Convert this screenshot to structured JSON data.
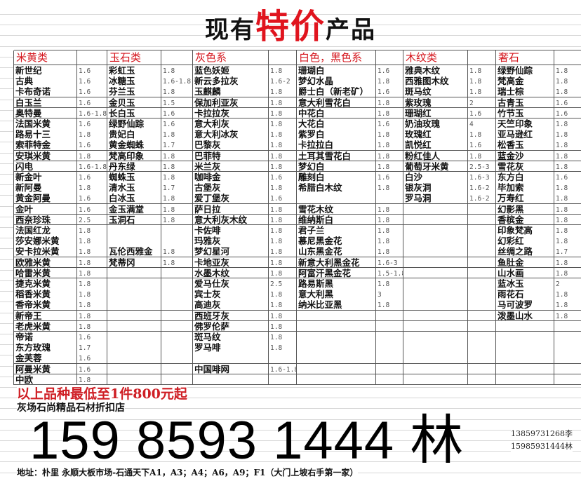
{
  "title": {
    "pre": "现有",
    "highlight": "特价",
    "post": "产品"
  },
  "categories": [
    {
      "header": "米黄类",
      "items": [
        [
          "新世纪",
          "1.6"
        ],
        [
          "古典",
          "1.6"
        ],
        [
          "卡布奇诺",
          "1.6"
        ],
        [
          "白玉兰",
          "1.6"
        ],
        [
          "奥特曼",
          "1.6-1.8"
        ],
        [
          "法国米黄",
          "1.6"
        ],
        [
          "路易十三",
          "1.8"
        ],
        [
          "索菲特金",
          "1.6"
        ],
        [
          "安琪米黄",
          "1.8"
        ],
        [
          "闪电",
          "1.6-1.8"
        ],
        [
          "新金叶",
          "1.6"
        ],
        [
          "新阿曼",
          "1.8"
        ],
        [
          "黄金阿曼",
          "1.6"
        ],
        [
          "金叶",
          "1.6"
        ],
        [
          "西奈珍珠",
          "2.5"
        ],
        [
          "法国红龙",
          "1.8"
        ],
        [
          "莎安娜米黄",
          "1.8"
        ],
        [
          "安卡拉米黄",
          "1.8"
        ],
        [
          "欧雅米黄",
          "1.8"
        ],
        [
          "哈雷米黄",
          "1.8"
        ],
        [
          "捷克米黄",
          "1.8"
        ],
        [
          "稻香米黄",
          "1.8"
        ],
        [
          "香帝米黄",
          "1.8"
        ],
        [
          "新帝王",
          "1.8"
        ],
        [
          "老虎米黄",
          "1.8"
        ],
        [
          "帝诺",
          "1.6"
        ],
        [
          "东方玫瑰",
          "1.7"
        ],
        [
          "金芙蓉",
          "1.6"
        ],
        [
          "阿曼米黄",
          "1.6"
        ],
        [
          "中欧",
          "1.8"
        ]
      ]
    },
    {
      "header": "玉石类",
      "items": [
        [
          "彩虹玉",
          "1.8"
        ],
        [
          "冰糖玉",
          "1.6-1.8"
        ],
        [
          "芬兰玉",
          "1.8"
        ],
        [
          "金贝玉",
          "1.5"
        ],
        [
          "长白玉",
          "1.6"
        ],
        [
          "绿野仙踪",
          "1.6"
        ],
        [
          "贵妃白",
          "1.8"
        ],
        [
          "黄金蜘蛛",
          "1.7"
        ],
        [
          "梵高印象",
          "1.8"
        ],
        [
          "丹东绿",
          "1.8"
        ],
        [
          "蜘蛛玉",
          "1.8"
        ],
        [
          "清水玉",
          "1.7"
        ],
        [
          "白冰玉",
          "1.8"
        ],
        [
          "金玉满堂",
          "1.8"
        ],
        [
          "玉洞石",
          "1.8"
        ],
        [
          "",
          ""
        ],
        [
          "",
          ""
        ],
        [
          "瓦伦西雅金",
          "1.8"
        ],
        [
          "梵蒂冈",
          "1.8"
        ]
      ]
    },
    {
      "header": "灰色系",
      "items": [
        [
          "蓝色妖姬",
          "1.8"
        ],
        [
          "新云多拉灰",
          "1.6-2"
        ],
        [
          "玉麒麟",
          "1.8"
        ],
        [
          "保加利亚灰",
          "1.8"
        ],
        [
          "卡拉拉灰",
          "1.8"
        ],
        [
          "意大利灰",
          "1.8"
        ],
        [
          "意大利冰灰",
          "1.8"
        ],
        [
          "巴黎灰",
          "1.8"
        ],
        [
          "巴菲特",
          "1.8"
        ],
        [
          "米兰灰",
          "1.8"
        ],
        [
          "咖啡金",
          "1.6"
        ],
        [
          "古堡灰",
          "1.8"
        ],
        [
          "爱丁堡灰",
          "1.6"
        ],
        [
          "萨日拉",
          "1.8"
        ],
        [
          "意大利灰木纹",
          "1.8"
        ],
        [
          "卡佐啡",
          "1.8"
        ],
        [
          "玛雅灰",
          "1.8"
        ],
        [
          "梦幻星河",
          "1.8"
        ],
        [
          "卡地亚灰",
          "1.8"
        ],
        [
          "水墨木纹",
          "1.8"
        ],
        [
          "爱马仕灰",
          "2.5"
        ],
        [
          "宾士灰",
          "1.8"
        ],
        [
          "高迪灰",
          "1.8"
        ],
        [
          "西班牙灰",
          "1.8"
        ],
        [
          "佛罗伦萨",
          "1.8"
        ],
        [
          "斑马纹",
          "1.8"
        ],
        [
          "罗马啡",
          "1.8"
        ],
        [
          "",
          ""
        ],
        [
          "中国啡网",
          "1.6-1.8"
        ]
      ]
    },
    {
      "header": "白色，黑色系",
      "items": [
        [
          "珊瑚白",
          "1.6"
        ],
        [
          "梦幻水晶",
          "1.8"
        ],
        [
          "爵士白（新老矿）",
          "1.6"
        ],
        [
          "意大利雪花白",
          "1.8"
        ],
        [
          "中花白",
          "1.8"
        ],
        [
          "大花白",
          "1.6"
        ],
        [
          "紫罗白",
          "1.8"
        ],
        [
          "卡拉拉白",
          "1.8"
        ],
        [
          "土耳其雪花白",
          "1.8"
        ],
        [
          "梦幻白",
          "1.8"
        ],
        [
          "雕刻白",
          "1.6"
        ],
        [
          "希腊白木纹",
          "1.8"
        ],
        [
          "",
          ""
        ],
        [
          "雪花木纹",
          "1.8"
        ],
        [
          "维纳斯白",
          "1.8"
        ],
        [
          "君子兰",
          "1.8"
        ],
        [
          "慕尼黑金花",
          "1.8"
        ],
        [
          "山东黑金花",
          "1.8"
        ],
        [
          "新意大利黑金花",
          "1.6-3"
        ],
        [
          "阿富汗黑金花",
          "1.5-1.8"
        ],
        [
          "路易斯黑",
          "1.8"
        ],
        [
          "意大利黑",
          "3"
        ],
        [
          "纳米比亚黑",
          "1.8"
        ]
      ]
    },
    {
      "header": "木纹类",
      "items": [
        [
          "雅典木纹",
          "1.8"
        ],
        [
          "西雅图木纹",
          "1.8"
        ],
        [
          "斑马纹",
          "1.8"
        ],
        [
          "紫玫瑰",
          "2"
        ],
        [
          "珊瑚红",
          "1.6"
        ],
        [
          "奶油玫瑰",
          "4"
        ],
        [
          "玫瑰红",
          "1.8"
        ],
        [
          "凯悦红",
          "1.6"
        ],
        [
          "粉红佳人",
          "1.8"
        ],
        [
          "葡萄牙米黄",
          "2.5-3"
        ],
        [
          "白沙",
          "1.6-3"
        ],
        [
          "银灰洞",
          "1.6-2"
        ],
        [
          "罗马洞",
          "1.6-2"
        ]
      ]
    },
    {
      "header": "奢石",
      "items": [
        [
          "绿野仙踪",
          "1.8"
        ],
        [
          "梵高金",
          "1.8"
        ],
        [
          "瑞士棕",
          "1.8"
        ],
        [
          "古青玉",
          "1.6"
        ],
        [
          "竹节玉",
          "1.6"
        ],
        [
          "天竺印象",
          "1.8"
        ],
        [
          "亚马逊红",
          "1.8"
        ],
        [
          "松香玉",
          "1.8"
        ],
        [
          "蓝金沙",
          "1.8"
        ],
        [
          "雪花灰",
          "1.8"
        ],
        [
          "东方白",
          "1.6"
        ],
        [
          "毕加索",
          "1.8"
        ],
        [
          "万寿红",
          "1.8"
        ],
        [
          "幻影黑",
          "1.8"
        ],
        [
          "香槟金",
          "1.8"
        ],
        [
          "印象梵高",
          "1.8"
        ],
        [
          "幻彩红",
          "1.8"
        ],
        [
          "丝绸之路",
          "1.7"
        ],
        [
          "鱼肚金",
          "1.8"
        ],
        [
          "山水画",
          "1.8"
        ],
        [
          "蓝冰玉",
          "2"
        ],
        [
          "雨花石",
          "1.8"
        ],
        [
          "马可波罗",
          "1.8"
        ],
        [
          "泼墨山水",
          "1.8"
        ]
      ]
    }
  ],
  "footer": {
    "min_order": "以上品种最低至1件800元起",
    "shop_name": "灰场石尚精品石材折扣店",
    "big_phone": "159 8593 1444 林",
    "phone1": "13859731268李",
    "phone2": "15985931444林",
    "address": "地址：朴里 永顺大板市场-石通天下A1，A3；A4；A6，A9；F1（大门上坡右手第一家）"
  },
  "colors": {
    "accent_red": "#e0141e",
    "header_red": "#d4161d"
  }
}
